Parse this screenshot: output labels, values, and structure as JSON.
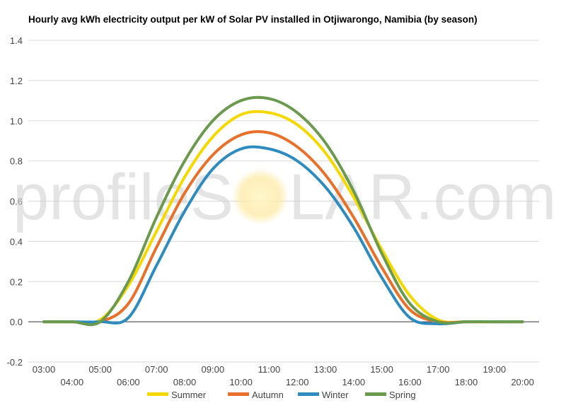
{
  "chart_data": {
    "type": "line",
    "title": "Hourly avg kWh electricity output per kW of Solar PV installed in Otjiwarongo, Namibia (by season)",
    "xlabel": "",
    "ylabel": "",
    "watermark": {
      "left": "profileS",
      "right": "LAR.com"
    },
    "x": [
      "03:00",
      "04:00",
      "05:00",
      "06:00",
      "07:00",
      "08:00",
      "09:00",
      "10:00",
      "11:00",
      "12:00",
      "13:00",
      "14:00",
      "15:00",
      "16:00",
      "17:00",
      "18:00",
      "19:00",
      "20:00"
    ],
    "ylim": [
      -0.2,
      1.4
    ],
    "yticks": [
      -0.2,
      0.0,
      0.2,
      0.4,
      0.6,
      0.8,
      1.0,
      1.2,
      1.4
    ],
    "ytick_labels": [
      "-0.2",
      "0.0",
      "0.2",
      "0.4",
      "0.6",
      "0.8",
      "1.0",
      "1.2",
      "1.4"
    ],
    "grid": true,
    "legend_position": "bottom",
    "series": [
      {
        "name": "Summer",
        "color": "#f5d800",
        "values": [
          0,
          0,
          0.01,
          0.18,
          0.45,
          0.72,
          0.92,
          1.03,
          1.04,
          0.98,
          0.84,
          0.62,
          0.36,
          0.13,
          0.01,
          0,
          0,
          0
        ]
      },
      {
        "name": "Autumn",
        "color": "#e8702a",
        "values": [
          0,
          0,
          0,
          0.09,
          0.37,
          0.64,
          0.83,
          0.93,
          0.94,
          0.87,
          0.73,
          0.52,
          0.27,
          0.06,
          0,
          0,
          0,
          0
        ]
      },
      {
        "name": "Winter",
        "color": "#2e8bc0",
        "values": [
          0,
          0,
          0,
          0.02,
          0.28,
          0.55,
          0.76,
          0.86,
          0.86,
          0.8,
          0.67,
          0.47,
          0.22,
          0.02,
          -0.01,
          0,
          0,
          0
        ]
      },
      {
        "name": "Spring",
        "color": "#6b9a4e",
        "values": [
          0,
          0,
          0,
          0.2,
          0.52,
          0.8,
          1.0,
          1.1,
          1.11,
          1.04,
          0.89,
          0.65,
          0.34,
          0.09,
          0,
          0,
          0,
          0
        ]
      }
    ]
  }
}
